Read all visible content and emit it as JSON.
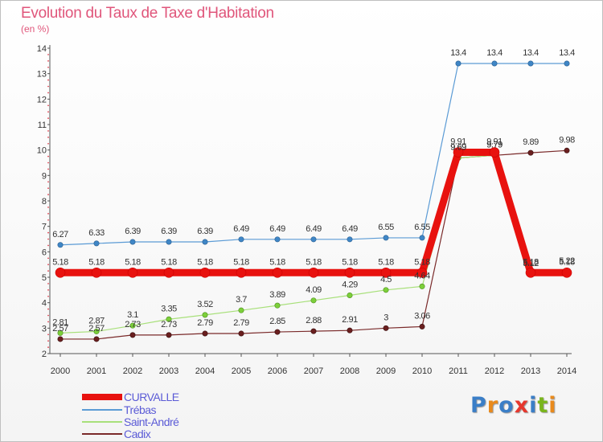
{
  "title": "Evolution du Taux de Taxe d'Habitation",
  "unit_label": "(en %)",
  "logo": {
    "text": "Proxiti",
    "letters": [
      "P",
      "r",
      "o",
      "x",
      "i",
      "t",
      "i"
    ],
    "colors": [
      "#3a7ec7",
      "#e98a1c",
      "#3a7ec7",
      "#e6372d",
      "#3a7ec7",
      "#7ab51d",
      "#e98a1c"
    ]
  },
  "chart_data": {
    "type": "line",
    "title": "Evolution du Taux de Taxe d'Habitation",
    "ylabel": "(en %)",
    "xlabel": "",
    "ylim": [
      2,
      14
    ],
    "yticks": [
      "2",
      "3",
      "4",
      "5",
      "6",
      "7",
      "8",
      "9",
      "10",
      "11",
      "12",
      "13",
      "14"
    ],
    "x": [
      "2000",
      "2001",
      "2002",
      "2003",
      "2004",
      "2005",
      "2006",
      "2007",
      "2008",
      "2009",
      "2010",
      "2011",
      "2012",
      "2013",
      "2014"
    ],
    "grid": false,
    "legend_position": "bottom-left",
    "series": [
      {
        "name": "CURVALLE",
        "color": "#e8120f",
        "values": [
          5.18,
          5.18,
          5.18,
          5.18,
          5.18,
          5.18,
          5.18,
          5.18,
          5.18,
          5.18,
          5.18,
          9.91,
          9.91,
          5.18,
          5.18
        ],
        "labels": [
          "5.18",
          "5.18",
          "5.18",
          "5.18",
          "5.18",
          "5.18",
          "5.18",
          "5.18",
          "5.18",
          "5.18",
          "5.18",
          "9.91",
          "9.91",
          "5.18",
          "5.18"
        ]
      },
      {
        "name": "Trébas",
        "color": "#5b9bd5",
        "values": [
          6.27,
          6.33,
          6.39,
          6.39,
          6.39,
          6.49,
          6.49,
          6.49,
          6.49,
          6.55,
          6.55,
          13.4,
          13.4,
          13.4,
          13.4
        ],
        "labels": [
          "6.27",
          "6.33",
          "6.39",
          "6.39",
          "6.39",
          "6.49",
          "6.49",
          "6.49",
          "6.49",
          "6.55",
          "6.55",
          "13.4",
          "13.4",
          "13.4",
          "13.4"
        ]
      },
      {
        "name": "Saint-André",
        "color": "#a8e07a",
        "values": [
          2.81,
          2.87,
          3.1,
          3.35,
          3.52,
          3.7,
          3.89,
          4.09,
          4.29,
          4.5,
          4.64,
          9.69,
          9.79,
          5.12,
          5.22
        ],
        "labels": [
          "2.81",
          "2.87",
          "3.1",
          "3.35",
          "3.52",
          "3.7",
          "3.89",
          "4.09",
          "4.29",
          "4.5",
          "4.64",
          "9.69",
          "9.79",
          "5.12",
          "5.22"
        ]
      },
      {
        "name": "Cadix",
        "color": "#7a2a2a",
        "values": [
          2.57,
          2.57,
          2.73,
          2.73,
          2.79,
          2.79,
          2.85,
          2.88,
          2.91,
          3,
          3.06,
          9.69,
          9.79,
          9.89,
          9.98
        ],
        "labels": [
          "2.57",
          "2.57",
          "2.73",
          "2.73",
          "2.79",
          "2.79",
          "2.85",
          "2.88",
          "2.91",
          "3",
          "3.06",
          "9.69",
          "9.79",
          "9.89",
          "9.98"
        ]
      }
    ]
  }
}
